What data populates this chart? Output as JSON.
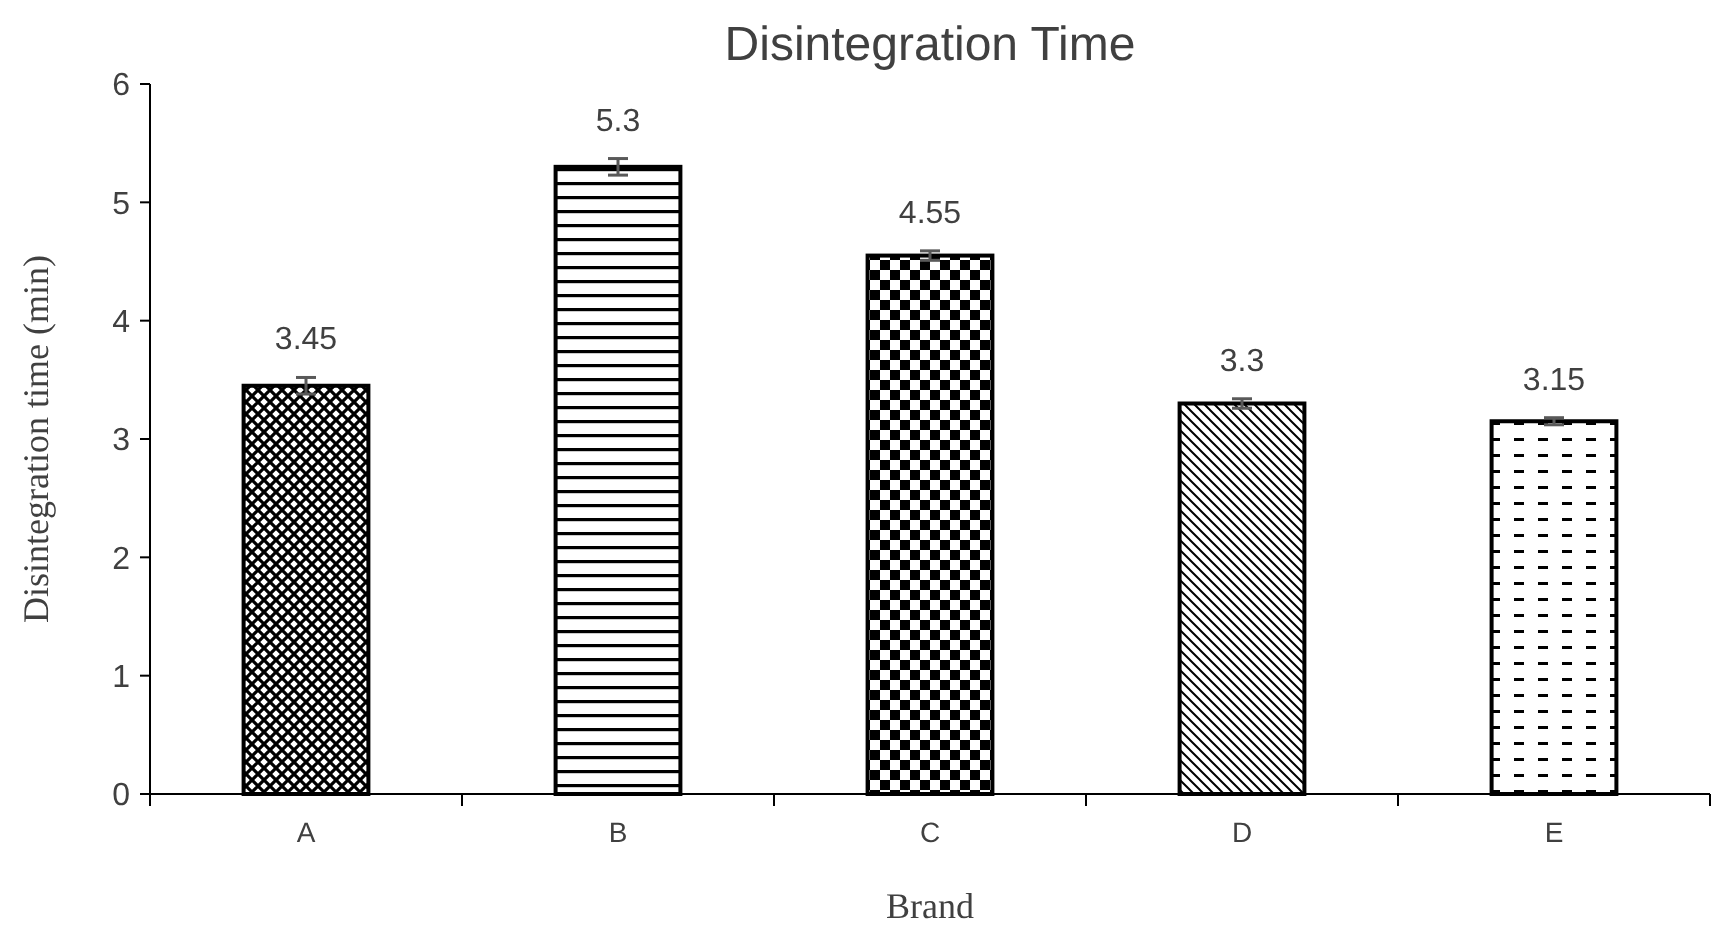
{
  "chart_data": {
    "type": "bar",
    "title": "Disintegration Time",
    "xlabel": "Brand",
    "ylabel": "Disintegration time (min)",
    "categories": [
      "A",
      "B",
      "C",
      "D",
      "E"
    ],
    "values": [
      3.45,
      5.3,
      4.55,
      3.3,
      3.15
    ],
    "errors": [
      0.07,
      0.07,
      0.04,
      0.04,
      0.03
    ],
    "color": "#000000",
    "ylim": [
      0,
      6
    ],
    "yticks": [
      0,
      1,
      2,
      3,
      4,
      5,
      6
    ],
    "data_labels": true,
    "grid": false
  }
}
